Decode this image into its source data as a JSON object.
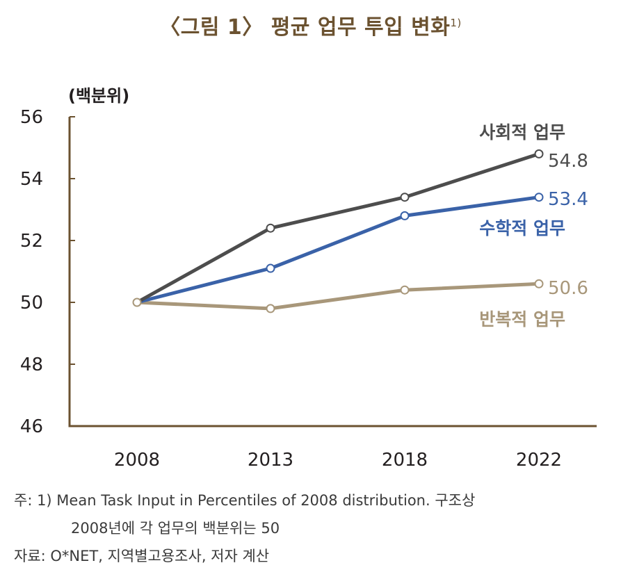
{
  "chart_data": {
    "type": "line",
    "title": "〈그림 1〉 평균 업무 투입 변화",
    "title_sup": "1)",
    "ylabel": "(백분위)",
    "xlabel": "",
    "categories": [
      "2008",
      "2013",
      "2018",
      "2022"
    ],
    "ylim": [
      46,
      56
    ],
    "yticks": [
      "56",
      "54",
      "52",
      "50",
      "48",
      "46"
    ],
    "series": [
      {
        "name": "사회적 업무",
        "values": [
          50.0,
          52.4,
          53.4,
          54.8
        ],
        "color": "#4d4d4d",
        "end_label": "54.8"
      },
      {
        "name": "수학적 업무",
        "values": [
          50.0,
          51.1,
          52.8,
          53.4
        ],
        "color": "#3a62a8",
        "end_label": "53.4"
      },
      {
        "name": "반복적 업무",
        "values": [
          50.0,
          49.8,
          50.4,
          50.6
        ],
        "color": "#a8977a",
        "end_label": "50.6"
      }
    ]
  },
  "notes": {
    "note_line1": "주: 1) Mean Task Input in Percentiles of 2008 distribution. 구조상",
    "note_line2": "2008년에 각 업무의 백분위는 50",
    "source": "자료: O*NET, 지역별고용조사, 저자 계산"
  },
  "colors": {
    "axis": "#6b5230",
    "title": "#6b5230"
  }
}
